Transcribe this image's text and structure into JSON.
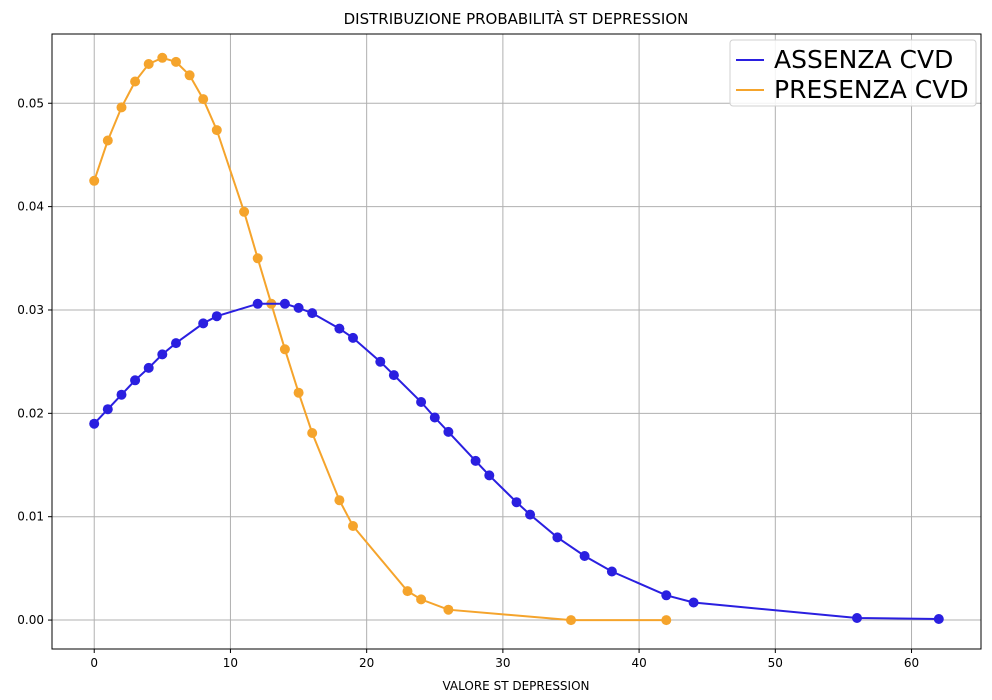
{
  "chart_data": {
    "type": "line",
    "title": "DISTRIBUZIONE PROBABILITÀ ST DEPRESSION",
    "xlabel": "VALORE ST DEPRESSION",
    "ylabel": "",
    "xlim": [
      -3.1,
      65.1
    ],
    "ylim": [
      -0.0028,
      0.0567
    ],
    "xticks": [
      0,
      10,
      20,
      30,
      40,
      50,
      60
    ],
    "yticks": [
      0.0,
      0.01,
      0.02,
      0.03,
      0.04,
      0.05
    ],
    "xtick_labels": [
      "0",
      "10",
      "20",
      "30",
      "40",
      "50",
      "60"
    ],
    "ytick_labels": [
      "0.00",
      "0.01",
      "0.02",
      "0.03",
      "0.04",
      "0.05"
    ],
    "grid": true,
    "legend_position": "top-right",
    "series": [
      {
        "name": "ASSENZA CVD",
        "color": "#2a1fe0",
        "x": [
          0,
          1,
          2,
          3,
          4,
          5,
          6,
          8,
          9,
          12,
          14,
          15,
          16,
          18,
          19,
          21,
          22,
          24,
          25,
          26,
          28,
          29,
          31,
          32,
          34,
          36,
          38,
          42,
          44,
          56,
          62
        ],
        "y": [
          0.019,
          0.0204,
          0.0218,
          0.0232,
          0.0244,
          0.0257,
          0.0268,
          0.0287,
          0.0294,
          0.0306,
          0.0306,
          0.0302,
          0.0297,
          0.0282,
          0.0273,
          0.025,
          0.0237,
          0.0211,
          0.0196,
          0.0182,
          0.0154,
          0.014,
          0.0114,
          0.0102,
          0.008,
          0.0062,
          0.0047,
          0.0024,
          0.0017,
          0.0002,
          0.0001
        ]
      },
      {
        "name": "PRESENZA CVD",
        "color": "#f5a42c",
        "x": [
          0,
          1,
          2,
          3,
          4,
          5,
          6,
          7,
          8,
          9,
          11,
          12,
          13,
          14,
          15,
          16,
          18,
          19,
          23,
          24,
          26,
          35,
          42
        ],
        "y": [
          0.0425,
          0.0464,
          0.0496,
          0.0521,
          0.0538,
          0.0544,
          0.054,
          0.0527,
          0.0504,
          0.0474,
          0.0395,
          0.035,
          0.0306,
          0.0262,
          0.022,
          0.0181,
          0.0116,
          0.0091,
          0.0028,
          0.002,
          0.001,
          0.0,
          0.0
        ]
      }
    ]
  }
}
